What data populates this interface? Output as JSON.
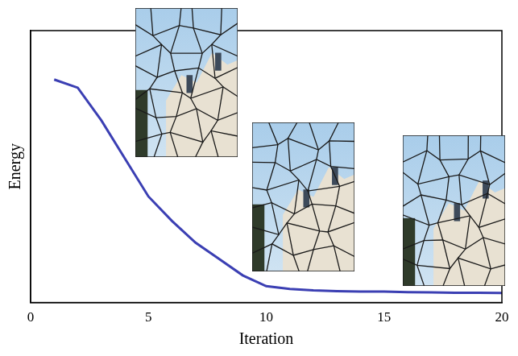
{
  "chart_data": {
    "type": "line",
    "x_label": "Iteration",
    "y_label": "Energy",
    "x": [
      1,
      2,
      3,
      4,
      5,
      6,
      7,
      8,
      9,
      10,
      11,
      12,
      13,
      14,
      15,
      16,
      17,
      18,
      19,
      20
    ],
    "series": [
      {
        "name": "Energy",
        "color": "#3b3fb3",
        "values": [
          0.82,
          0.79,
          0.67,
          0.53,
          0.39,
          0.3,
          0.22,
          0.16,
          0.1,
          0.06,
          0.05,
          0.045,
          0.042,
          0.04,
          0.04,
          0.038,
          0.037,
          0.036,
          0.036,
          0.035
        ]
      }
    ],
    "xlim": [
      0,
      20
    ],
    "xticks": [
      0,
      5,
      10,
      15,
      20
    ],
    "ylim": [
      0,
      1
    ],
    "yticks": [],
    "tick_labels": "x",
    "grid": false
  }
}
